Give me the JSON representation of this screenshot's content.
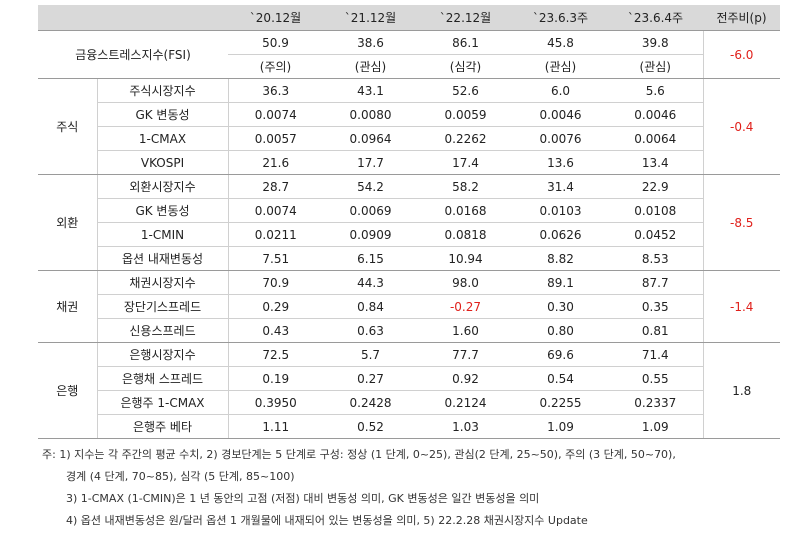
{
  "table": {
    "columns": [
      "`20.12월",
      "`21.12월",
      "`22.12월",
      "`23.6.3주",
      "`23.6.4주",
      "전주비(p)"
    ],
    "fsi": {
      "label": "금융스트레스지수(FSI)",
      "values": [
        "50.9",
        "38.6",
        "86.1",
        "45.8",
        "39.8"
      ],
      "statuses": [
        "(주의)",
        "(관심)",
        "(심각)",
        "(관심)",
        "(관심)"
      ],
      "change": "-6.0"
    },
    "groups": [
      {
        "name": "주식",
        "change": "-0.4",
        "rows": [
          {
            "label": "주식시장지수",
            "values": [
              "36.3",
              "43.1",
              "52.6",
              "6.0",
              "5.6"
            ]
          },
          {
            "label": "GK 변동성",
            "values": [
              "0.0074",
              "0.0080",
              "0.0059",
              "0.0046",
              "0.0046"
            ]
          },
          {
            "label": "1-CMAX",
            "values": [
              "0.0057",
              "0.0964",
              "0.2262",
              "0.0076",
              "0.0064"
            ]
          },
          {
            "label": "VKOSPI",
            "values": [
              "21.6",
              "17.7",
              "17.4",
              "13.6",
              "13.4"
            ]
          }
        ]
      },
      {
        "name": "외환",
        "change": "-8.5",
        "rows": [
          {
            "label": "외환시장지수",
            "values": [
              "28.7",
              "54.2",
              "58.2",
              "31.4",
              "22.9"
            ]
          },
          {
            "label": "GK 변동성",
            "values": [
              "0.0074",
              "0.0069",
              "0.0168",
              "0.0103",
              "0.0108"
            ]
          },
          {
            "label": "1-CMIN",
            "values": [
              "0.0211",
              "0.0909",
              "0.0818",
              "0.0626",
              "0.0452"
            ]
          },
          {
            "label": "옵션 내재변동성",
            "values": [
              "7.51",
              "6.15",
              "10.94",
              "8.82",
              "8.53"
            ]
          }
        ]
      },
      {
        "name": "채권",
        "change": "-1.4",
        "rows": [
          {
            "label": "채권시장지수",
            "values": [
              "70.9",
              "44.3",
              "98.0",
              "89.1",
              "87.7"
            ]
          },
          {
            "label": "장단기스프레드",
            "values": [
              "0.29",
              "0.84",
              "-0.27",
              "0.30",
              "0.35"
            ]
          },
          {
            "label": "신용스프레드",
            "values": [
              "0.43",
              "0.63",
              "1.60",
              "0.80",
              "0.81"
            ]
          }
        ]
      },
      {
        "name": "은행",
        "change": "1.8",
        "rows": [
          {
            "label": "은행시장지수",
            "values": [
              "72.5",
              "5.7",
              "77.7",
              "69.6",
              "71.4"
            ]
          },
          {
            "label": "은행채 스프레드",
            "values": [
              "0.19",
              "0.27",
              "0.92",
              "0.54",
              "0.55"
            ]
          },
          {
            "label": "은행주 1-CMAX",
            "values": [
              "0.3950",
              "0.2428",
              "0.2124",
              "0.2255",
              "0.2337"
            ]
          },
          {
            "label": "은행주 베타",
            "values": [
              "1.11",
              "0.52",
              "1.03",
              "1.09",
              "1.09"
            ]
          }
        ]
      }
    ]
  },
  "notes": [
    "주: 1) 지수는 각 주간의 평균 수치, 2) 경보단계는 5 단계로 구성: 정상 (1 단계, 0~25), 관심(2 단계, 25~50), 주의 (3 단계, 50~70),",
    "경계 (4 단계, 70~85), 심각 (5 단계, 85~100)",
    "3) 1-CMAX (1-CMIN)은 1 년 동안의 고점 (저점) 대비 변동성 의미, GK 변동성은 일간 변동성을 의미",
    "4) 옵션 내재변동성은 원/달러 옵션 1 개월물에 내재되어 있는 변동성을 의미, 5) 22.2.28 채권시장지수 Update"
  ]
}
